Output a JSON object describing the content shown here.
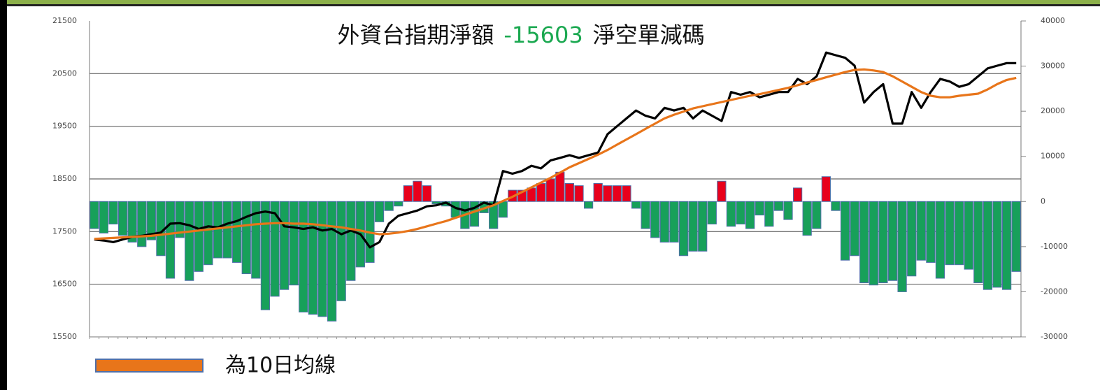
{
  "chart_data": {
    "type": "combo",
    "title_parts": [
      "外資台指期淨額",
      "-15603",
      "淨空單減碼"
    ],
    "title_colors": [
      "#111111",
      "#1aa850",
      "#111111"
    ],
    "categories": [
      null,
      null,
      null,
      null,
      null,
      null,
      null,
      null,
      null,
      null,
      null,
      null,
      null,
      null,
      null,
      null,
      null,
      null,
      null,
      null,
      null,
      null,
      null,
      null,
      null,
      null,
      null,
      null,
      null,
      null,
      null,
      null,
      null,
      null,
      null,
      null,
      null,
      null,
      null,
      null,
      null,
      null,
      null,
      null,
      null,
      null,
      null,
      null,
      null,
      null,
      null,
      null,
      null,
      null,
      null,
      null,
      null,
      null,
      null,
      null,
      null,
      null,
      null,
      null,
      null,
      null,
      null,
      null,
      null,
      null,
      null,
      null,
      null,
      null,
      null,
      null,
      null,
      null,
      null,
      null,
      null,
      null,
      null,
      null,
      null,
      null,
      null,
      null,
      null,
      null,
      null,
      null,
      null,
      null,
      null,
      null,
      null,
      null
    ],
    "ylim": [
      15500,
      21500
    ],
    "yticks": [
      15500,
      16500,
      17500,
      18500,
      19500,
      20500,
      21500
    ],
    "y2lim": [
      -30000,
      40000
    ],
    "y2ticks": [
      -30000,
      -20000,
      -10000,
      0,
      10000,
      20000,
      30000,
      40000
    ],
    "grid": true,
    "legend": "bottom-left",
    "series": [
      {
        "type": "bar",
        "axis": "y2",
        "color_positive": "#e8001c",
        "color_negative": "#17a05a",
        "stroke": "#4f6fa8",
        "values": [
          -6000,
          -7000,
          -5000,
          -7500,
          -9000,
          -10000,
          -8500,
          -12000,
          -17000,
          -8000,
          -17500,
          -15500,
          -14000,
          -12500,
          -12500,
          -13500,
          -16000,
          -17000,
          -24000,
          -21000,
          -19500,
          -18500,
          -24500,
          -25000,
          -25500,
          -26500,
          -22000,
          -17500,
          -14500,
          -13500,
          -4500,
          -2000,
          -1000,
          3500,
          4500,
          3500,
          -500,
          -1000,
          -3500,
          -6000,
          -5500,
          -2500,
          -6000,
          -3500,
          2500,
          2500,
          3000,
          4000,
          5000,
          6500,
          4000,
          3500,
          -1500,
          4000,
          3500,
          3500,
          3500,
          -1500,
          -6000,
          -8000,
          -9000,
          -9000,
          -12000,
          -11000,
          -11000,
          -5000,
          4500,
          -5500,
          -5000,
          -6000,
          -3000,
          -5500,
          -2000,
          -4000,
          3000,
          -7500,
          -6000,
          5500,
          -2000,
          -13000,
          -12000,
          -18000,
          -18500,
          -18000,
          -17500,
          -20000,
          -16500,
          -13000,
          -13500,
          -17000,
          -14000,
          -14000,
          -15000,
          -18000,
          -19500,
          -19000,
          -19500,
          -15500
        ]
      },
      {
        "type": "line",
        "axis": "y",
        "color": "#000000",
        "values": [
          17350,
          17330,
          17300,
          17350,
          17400,
          17420,
          17450,
          17480,
          17650,
          17660,
          17620,
          17550,
          17600,
          17580,
          17650,
          17700,
          17780,
          17850,
          17880,
          17850,
          17600,
          17580,
          17550,
          17580,
          17520,
          17550,
          17450,
          17520,
          17450,
          17200,
          17300,
          17650,
          17800,
          17850,
          17900,
          17980,
          18000,
          18050,
          17950,
          17900,
          17950,
          18050,
          18000,
          18650,
          18600,
          18650,
          18750,
          18700,
          18850,
          18900,
          18950,
          18900,
          18950,
          19000,
          19350,
          19500,
          19650,
          19800,
          19700,
          19650,
          19850,
          19800,
          19850,
          19650,
          19800,
          19700,
          19600,
          20150,
          20100,
          20150,
          20050,
          20100,
          20150,
          20150,
          20400,
          20300,
          20450,
          20900,
          20850,
          20800,
          20650,
          19950,
          20150,
          20300,
          19550,
          19550,
          20150,
          19850,
          20150,
          20400,
          20350,
          20250,
          20300,
          20450,
          20600,
          20650,
          20700,
          20700
        ]
      },
      {
        "type": "line",
        "axis": "y",
        "name": "為10日均線",
        "color": "#e8751a",
        "values": [
          17360,
          17370,
          17380,
          17390,
          17400,
          17410,
          17420,
          17440,
          17460,
          17480,
          17500,
          17520,
          17540,
          17560,
          17580,
          17600,
          17620,
          17640,
          17650,
          17660,
          17660,
          17650,
          17650,
          17640,
          17620,
          17600,
          17580,
          17550,
          17520,
          17480,
          17450,
          17460,
          17480,
          17510,
          17550,
          17600,
          17650,
          17700,
          17760,
          17820,
          17880,
          17940,
          18000,
          18080,
          18160,
          18250,
          18340,
          18430,
          18520,
          18620,
          18720,
          18800,
          18880,
          18960,
          19050,
          19150,
          19250,
          19350,
          19450,
          19550,
          19650,
          19720,
          19780,
          19840,
          19880,
          19920,
          19960,
          20000,
          20040,
          20080,
          20110,
          20150,
          20190,
          20230,
          20280,
          20330,
          20380,
          20430,
          20480,
          20530,
          20570,
          20580,
          20560,
          20530,
          20450,
          20350,
          20250,
          20150,
          20080,
          20050,
          20050,
          20080,
          20100,
          20120,
          20200,
          20300,
          20380,
          20420
        ]
      }
    ]
  }
}
